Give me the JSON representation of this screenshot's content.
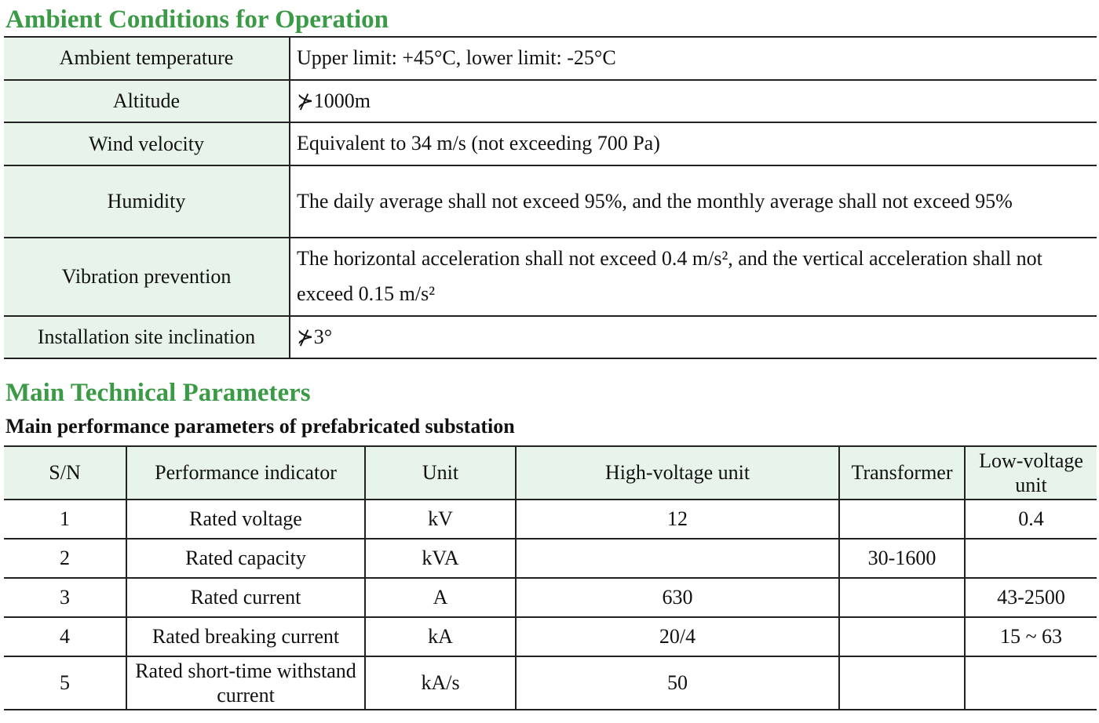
{
  "ambient": {
    "title": "Ambient Conditions for Operation",
    "rows": [
      {
        "k": "Ambient temperature",
        "v": "Upper limit: +45°C, lower limit: -25°C"
      },
      {
        "k": "Altitude",
        "v": "⊁1000m"
      },
      {
        "k": "Wind velocity",
        "v": "Equivalent to 34 m/s (not exceeding 700 Pa)"
      },
      {
        "k": "Humidity",
        "v": "The daily average shall not exceed 95%, and the monthly average shall not exceed 95%"
      },
      {
        "k": "Vibration prevention",
        "v": "The horizontal acceleration shall not exceed 0.4 m/s², and the vertical acceleration shall not exceed 0.15 m/s²"
      },
      {
        "k": "Installation site inclination",
        "v": "⊁3°"
      }
    ]
  },
  "params": {
    "title": "Main Technical Parameters",
    "subtitle": "Main performance parameters of prefabricated substation",
    "headers": [
      "S/N",
      "Performance indicator",
      "Unit",
      "High-voltage unit",
      "Transformer",
      "Low-voltage unit"
    ],
    "rows": [
      [
        "1",
        "Rated voltage",
        "kV",
        "12",
        "",
        "0.4"
      ],
      [
        "2",
        "Rated capacity",
        "kVA",
        "",
        "30-1600",
        ""
      ],
      [
        "3",
        "Rated current",
        "A",
        "630",
        "",
        "43-2500"
      ],
      [
        "4",
        "Rated breaking current",
        "kA",
        "20/4",
        "",
        "15 ~ 63"
      ],
      [
        "5",
        "Rated short-time withstand current",
        "kA/s",
        "50",
        "",
        ""
      ]
    ]
  }
}
